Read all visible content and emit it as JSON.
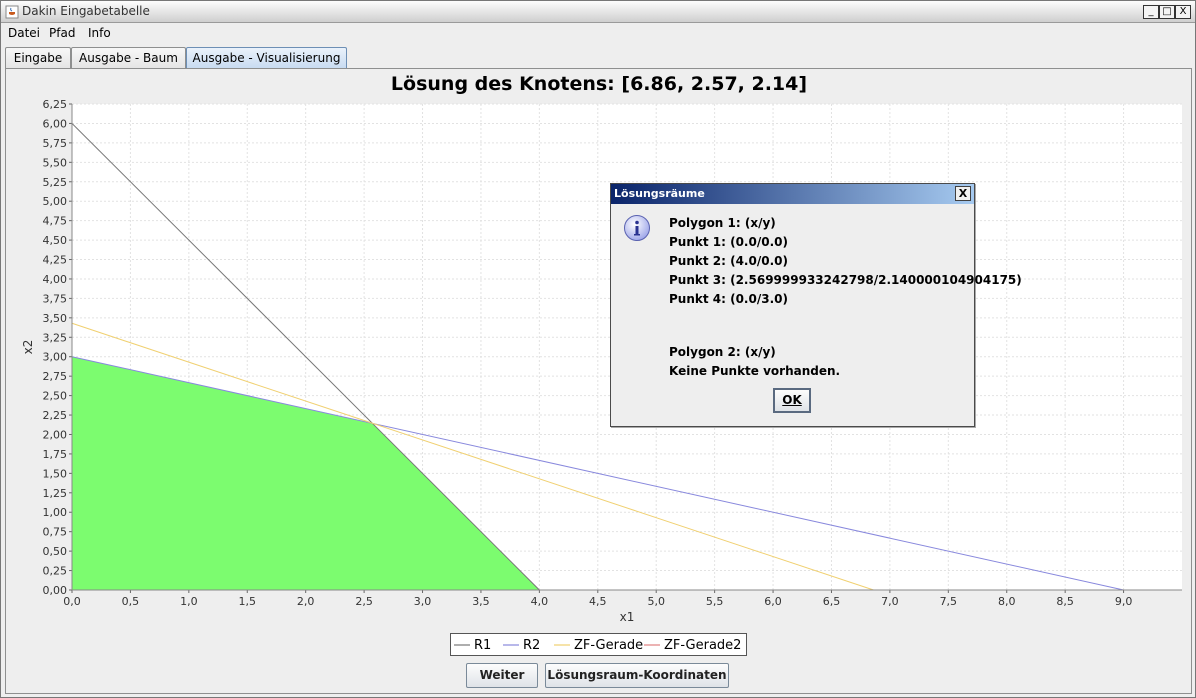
{
  "window": {
    "title": "Dakin Eingabetabelle",
    "controls": {
      "minimize": "_",
      "maximize": "□",
      "close": "X"
    }
  },
  "menu": [
    "Datei",
    "Pfad",
    "Info"
  ],
  "tabs": [
    {
      "label": "Eingabe",
      "active": false
    },
    {
      "label": "Ausgabe - Baum",
      "active": false
    },
    {
      "label": "Ausgabe - Visualisierung",
      "active": true
    }
  ],
  "buttons": {
    "next": "Weiter",
    "coords": "Lösungsraum-Koordinaten"
  },
  "chart_data": {
    "type": "line",
    "title": "Lösung des Knotens: [6.86, 2.57, 2.14]",
    "xlabel": "x1",
    "ylabel": "x2",
    "xlim": [
      0,
      9.5
    ],
    "ylim": [
      0,
      6.25
    ],
    "xticks": [
      "0,0",
      "0,5",
      "1,0",
      "1,5",
      "2,0",
      "2,5",
      "3,0",
      "3,5",
      "4,0",
      "4,5",
      "5,0",
      "5,5",
      "6,0",
      "6,5",
      "7,0",
      "7,5",
      "8,0",
      "8,5",
      "9,0"
    ],
    "yticks": [
      "0,00",
      "0,25",
      "0,50",
      "0,75",
      "1,00",
      "1,25",
      "1,50",
      "1,75",
      "2,00",
      "2,25",
      "2,50",
      "2,75",
      "3,00",
      "3,25",
      "3,50",
      "3,75",
      "4,00",
      "4,25",
      "4,50",
      "4,75",
      "5,00",
      "5,25",
      "5,50",
      "5,75",
      "6,00",
      "6,25"
    ],
    "grid": true,
    "legend_position": "bottom",
    "series": [
      {
        "name": "R1",
        "color": "#777777",
        "x": [
          0,
          4.0
        ],
        "y": [
          6.0,
          0
        ]
      },
      {
        "name": "R2",
        "color": "#8888dd",
        "x": [
          0,
          9.0
        ],
        "y": [
          3.0,
          0
        ]
      },
      {
        "name": "ZF-Gerade",
        "color": "#f0d070",
        "x": [
          0,
          6.86
        ],
        "y": [
          3.43,
          0
        ]
      },
      {
        "name": "ZF-Gerade2",
        "color": "#e08080",
        "x": [],
        "y": []
      }
    ],
    "region": {
      "color": "#7cfc6f",
      "points": [
        [
          0.0,
          0.0
        ],
        [
          4.0,
          0.0
        ],
        [
          2.57,
          2.14
        ],
        [
          0.0,
          3.0
        ]
      ]
    }
  },
  "dialog": {
    "title": "Lösungsräume",
    "close": "X",
    "lines": [
      "Polygon 1: (x/y)",
      "Punkt 1: (0.0/0.0)",
      "Punkt 2: (4.0/0.0)",
      "Punkt 3: (2.569999933242798/2.140000104904175)",
      "Punkt 4: (0.0/3.0)",
      "Polygon 2: (x/y)",
      "Keine Punkte vorhanden."
    ],
    "ok": "OK"
  }
}
